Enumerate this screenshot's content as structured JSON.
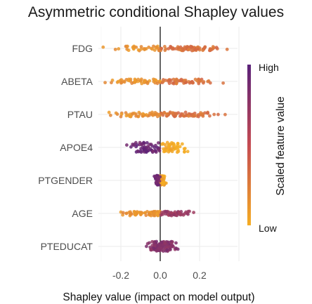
{
  "chart_data": {
    "type": "beeswarm",
    "title": "Asymmetric conditional Shapley values",
    "xlabel": "Shapley value (impact on model output)",
    "ylabel": "",
    "xlim": [
      -0.34,
      0.42
    ],
    "xticks": [
      -0.2,
      0.0,
      0.2
    ],
    "xtick_labels": [
      "-0.2",
      "0.0",
      "0.2"
    ],
    "grid": true,
    "legend": {
      "title": "Scaled feature value",
      "high_label": "High",
      "low_label": "Low",
      "placement": "right",
      "color_low": "#f5ad23",
      "color_high": "#5a2179"
    },
    "features": [
      {
        "name": "FDG",
        "min": -0.29,
        "max": 0.34,
        "neg_color": 0.15,
        "pos_color": 0.3
      },
      {
        "name": "ABETA",
        "min": -0.28,
        "max": 0.32,
        "neg_color": 0.15,
        "pos_color": 0.3
      },
      {
        "name": "PTAU",
        "min": -0.26,
        "max": 0.33,
        "neg_color": 0.15,
        "pos_color": 0.3
      },
      {
        "name": "APOE4",
        "min": -0.17,
        "max": 0.14,
        "neg_color": 0.92,
        "pos_color": 0.0
      },
      {
        "name": "PTGENDER",
        "min": -0.03,
        "max": 0.03,
        "neg_color": 0.9,
        "pos_color": 0.05
      },
      {
        "name": "AGE",
        "min": -0.2,
        "max": 0.17,
        "neg_color": 0.15,
        "pos_color": 0.7
      },
      {
        "name": "PTEDUCAT",
        "min": -0.07,
        "max": 0.09,
        "neg_color": 0.8,
        "pos_color": 0.8
      }
    ]
  }
}
